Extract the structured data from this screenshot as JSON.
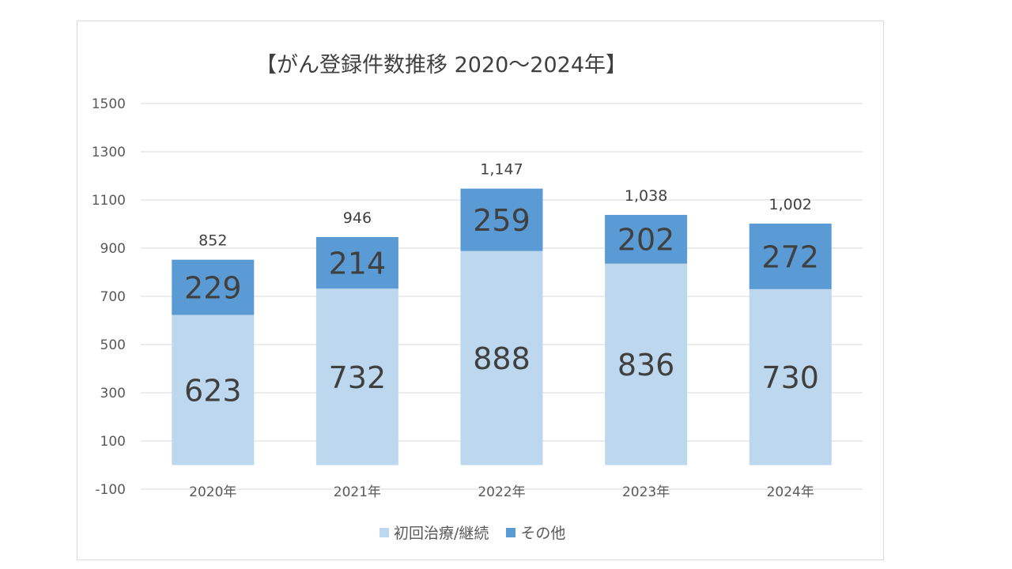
{
  "chart_data": {
    "type": "bar",
    "stacked": true,
    "title": "【がん登録件数推移 2020～2024年】",
    "categories": [
      "2020年",
      "2021年",
      "2022年",
      "2023年",
      "2024年"
    ],
    "series": [
      {
        "name": "初回治療/継続",
        "values": [
          623,
          732,
          888,
          836,
          730
        ],
        "color": "#bdd7ee"
      },
      {
        "name": "その他",
        "values": [
          229,
          214,
          259,
          202,
          272
        ],
        "color": "#5b9bd5"
      }
    ],
    "totals": [
      "852",
      "946",
      "1,147",
      "1,038",
      "1,002"
    ],
    "yticks": [
      1500,
      1300,
      1100,
      900,
      700,
      500,
      300,
      100,
      -100
    ],
    "ylim": [
      -100,
      1500
    ],
    "grid": true,
    "legend_position": "bottom"
  }
}
